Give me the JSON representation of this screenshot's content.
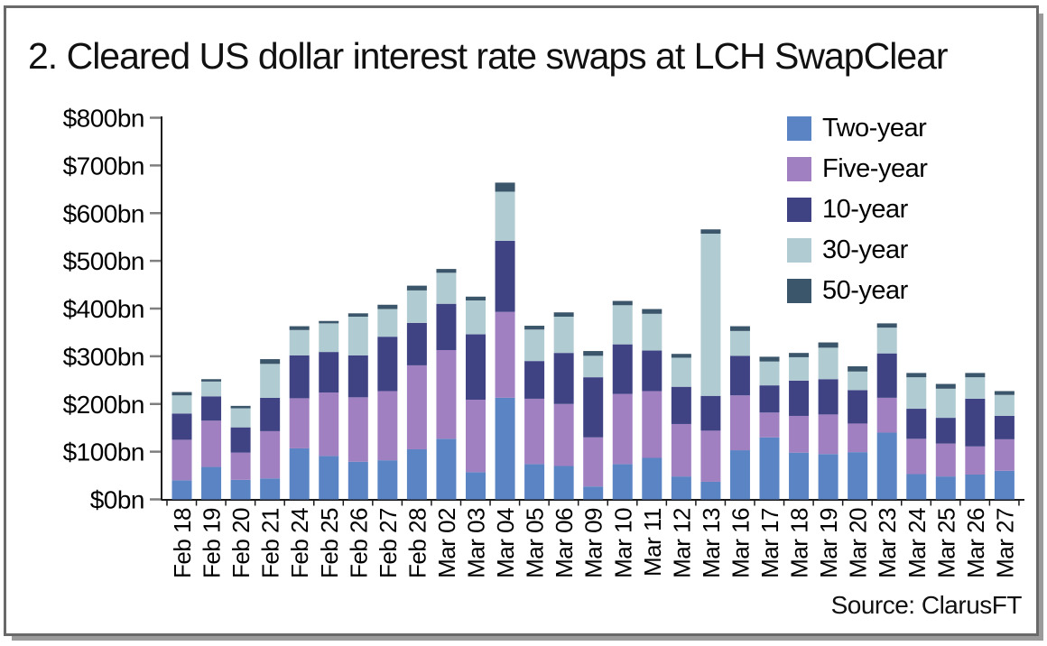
{
  "title": "2. Cleared US dollar interest rate swaps at LCH SwapClear",
  "source": "Source: ClarusFT",
  "chart_data": {
    "type": "bar",
    "stacked": true,
    "title": "2. Cleared US dollar interest rate swaps at LCH SwapClear",
    "unit": "USD billions notional",
    "grid": false,
    "legend_position": "top-right",
    "ylim": [
      0,
      800
    ],
    "y_ticks": [
      "$0bn",
      "$100bn",
      "$200bn",
      "$300bn",
      "$400bn",
      "$500bn",
      "$600bn",
      "$700bn",
      "$800bn"
    ],
    "categories": [
      "Feb 18",
      "Feb 19",
      "Feb 20",
      "Feb 21",
      "Feb 24",
      "Feb 25",
      "Feb 26",
      "Feb 27",
      "Feb 28",
      "Mar 02",
      "Mar 03",
      "Mar 04",
      "Mar 05",
      "Mar 06",
      "Mar 09",
      "Mar 10",
      "Mar 11",
      "Mar 12",
      "Mar 13",
      "Mar 16",
      "Mar 17",
      "Mar 18",
      "Mar 19",
      "Mar 20",
      "Mar 23",
      "Mar 24",
      "Mar 25",
      "Mar 26",
      "Mar 27"
    ],
    "series": [
      {
        "name": "Two-year",
        "color": "#5b84c4",
        "values": [
          40,
          68,
          41,
          44,
          107,
          91,
          79,
          82,
          105,
          127,
          57,
          213,
          74,
          70,
          27,
          74,
          87,
          48,
          37,
          103,
          130,
          98,
          95,
          99,
          140,
          53,
          48,
          52,
          60
        ]
      },
      {
        "name": "Five-year",
        "color": "#a180c1",
        "values": [
          85,
          97,
          57,
          99,
          105,
          133,
          135,
          145,
          176,
          186,
          152,
          180,
          137,
          130,
          103,
          147,
          140,
          110,
          107,
          115,
          52,
          77,
          83,
          60,
          73,
          74,
          69,
          59,
          66
        ]
      },
      {
        "name": "10-year",
        "color": "#3f4384",
        "values": [
          55,
          51,
          53,
          70,
          90,
          85,
          88,
          114,
          89,
          97,
          137,
          149,
          79,
          107,
          126,
          104,
          85,
          78,
          73,
          83,
          57,
          74,
          74,
          70,
          93,
          63,
          54,
          100,
          49
        ]
      },
      {
        "name": "30-year",
        "color": "#b1cbd3",
        "values": [
          38,
          31,
          40,
          71,
          53,
          60,
          81,
          58,
          68,
          65,
          71,
          103,
          66,
          76,
          45,
          82,
          77,
          61,
          340,
          52,
          50,
          49,
          66,
          39,
          54,
          66,
          61,
          45,
          44
        ]
      },
      {
        "name": "50-year",
        "color": "#3b566a",
        "values": [
          7,
          5,
          5,
          10,
          8,
          5,
          7,
          9,
          10,
          8,
          8,
          19,
          8,
          9,
          10,
          9,
          10,
          8,
          9,
          10,
          10,
          9,
          11,
          11,
          9,
          9,
          10,
          9,
          8
        ]
      }
    ]
  },
  "colors": {
    "axis": "#1a1a1a",
    "tick": "#7f7f7f",
    "frame_border": "#696969",
    "frame_shadow": "#9b9b9b"
  }
}
